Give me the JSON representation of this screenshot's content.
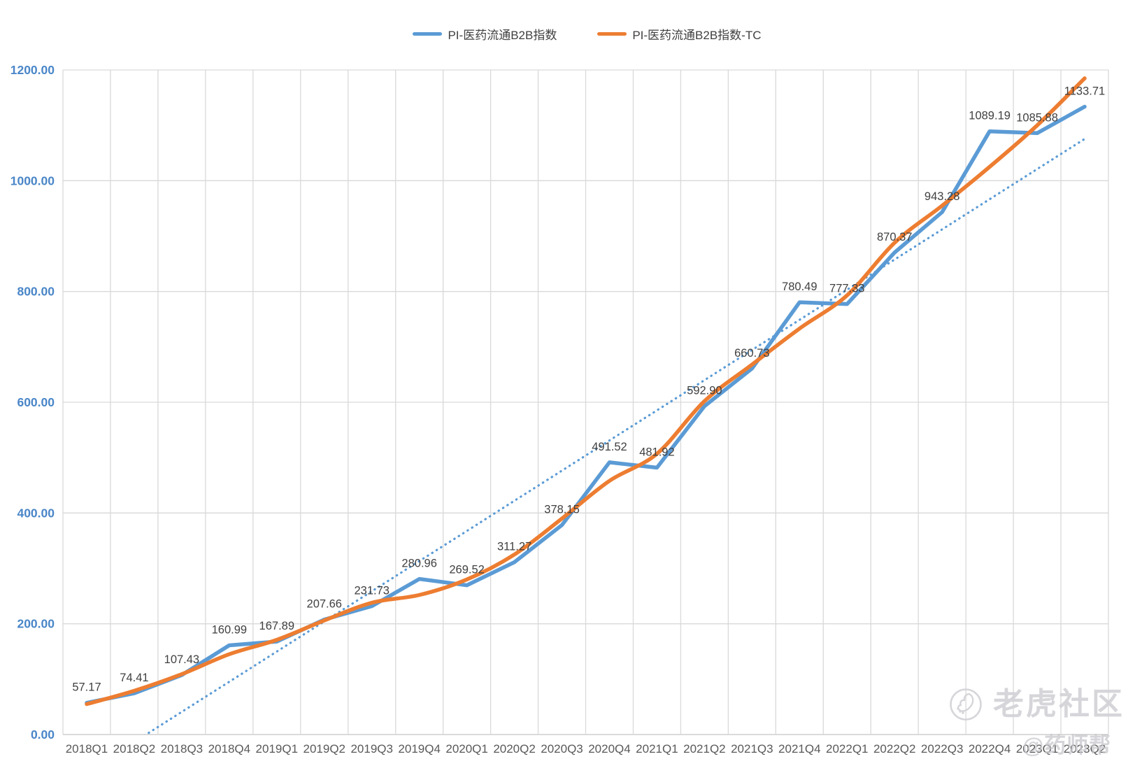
{
  "legend": {
    "items": [
      {
        "label": "PI-医药流通B2B指数",
        "color": "#5B9BD5"
      },
      {
        "label": "PI-医药流通B2B指数-TC",
        "color": "#ED7D31"
      }
    ]
  },
  "watermark": {
    "brand": "老虎社区",
    "author": "@药师帮",
    "logo": "tiger-circle-icon"
  },
  "colors": {
    "series_blue": "#5B9BD5",
    "series_orange": "#ED7D31",
    "trendline": "#5B9BD5",
    "grid": "#D9D9D9",
    "axis_line": "#C3C3C3",
    "axis_label_y": "#4A86C8",
    "axis_label_x": "#595959",
    "data_label": "#404040",
    "watermark": "#D2D2D7"
  },
  "chart_data": {
    "type": "line",
    "title": "",
    "xlabel": "",
    "ylabel": "",
    "ylim": [
      0,
      1200
    ],
    "ytick_step": 200,
    "ytick_labels": [
      "0.00",
      "200.00",
      "400.00",
      "600.00",
      "800.00",
      "1000.00",
      "1200.00"
    ],
    "grid": true,
    "legend_position": "top",
    "categories": [
      "2018Q1",
      "2018Q2",
      "2018Q3",
      "2018Q4",
      "2019Q1",
      "2019Q2",
      "2019Q3",
      "2019Q4",
      "2020Q1",
      "2020Q2",
      "2020Q3",
      "2020Q4",
      "2021Q1",
      "2021Q2",
      "2021Q3",
      "2021Q4",
      "2022Q1",
      "2022Q2",
      "2022Q3",
      "2022Q4",
      "2023Q1",
      "2023Q2"
    ],
    "series": [
      {
        "name": "PI-医药流通B2B指数",
        "style": "solid",
        "color": "#5B9BD5",
        "show_labels": true,
        "values": [
          57.17,
          74.41,
          107.43,
          160.99,
          167.89,
          207.66,
          231.73,
          280.96,
          269.52,
          311.27,
          378.15,
          491.52,
          481.92,
          592.9,
          660.73,
          780.49,
          777.33,
          870.37,
          943.28,
          1089.19,
          1085.88,
          1133.71
        ],
        "data_labels": [
          "57.17",
          "74.41",
          "107.43",
          "160.99",
          "167.89",
          "207.66",
          "231.73",
          "280.96",
          "269.52",
          "311.27",
          "378.15",
          "491.52",
          "481.92",
          "592.90",
          "660.73",
          "780.49",
          "777.33",
          "870.37",
          "943.28",
          "1089.19",
          "1085.88",
          "1133.71"
        ]
      },
      {
        "name": "PI-医药流通B2B指数-TC",
        "style": "smooth",
        "color": "#ED7D31",
        "show_labels": false,
        "values": [
          55,
          79,
          109,
          145,
          171,
          206,
          238,
          252,
          280,
          325,
          390,
          458,
          507,
          602,
          668,
          733,
          793,
          888,
          955,
          1025,
          1100,
          1185
        ]
      },
      {
        "name": "linear-trendline",
        "style": "dotted",
        "color": "#5B9BD5",
        "show_labels": false,
        "values": [
          -68.0,
          -13.6,
          40.9,
          95.3,
          149.8,
          204.3,
          258.7,
          313.2,
          367.6,
          422.1,
          476.5,
          531.0,
          585.4,
          639.9,
          694.3,
          748.8,
          803.2,
          857.7,
          912.1,
          966.6,
          1021.0,
          1075.5
        ]
      }
    ]
  }
}
